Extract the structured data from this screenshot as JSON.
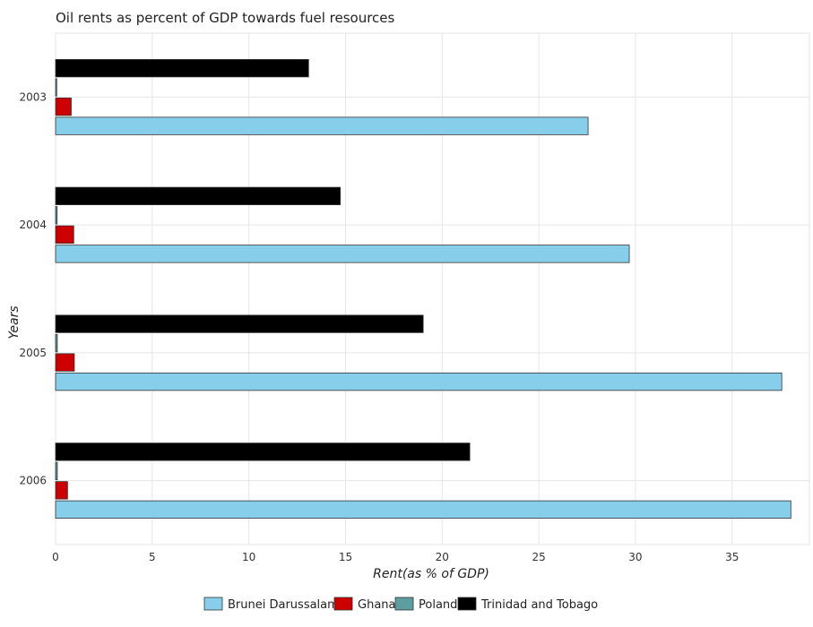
{
  "chart_data": {
    "type": "bar",
    "orientation": "horizontal",
    "title": "Oil rents as percent of GDP towards fuel resources",
    "xlabel": "Rent(as % of GDP)",
    "ylabel": "Years",
    "categories": [
      "2003",
      "2004",
      "2005",
      "2006"
    ],
    "xlim": [
      0,
      39
    ],
    "xticks": [
      "0",
      "5",
      "10",
      "15",
      "20",
      "25",
      "30",
      "35"
    ],
    "grid": true,
    "legend_position": "bottom",
    "series": [
      {
        "name": "Brunei Darussalam",
        "color": "#87CEEB",
        "values": [
          27.55,
          29.68,
          37.57,
          38.04
        ]
      },
      {
        "name": "Ghana",
        "color": "#CC0000",
        "values": [
          0.81,
          0.94,
          0.97,
          0.62
        ]
      },
      {
        "name": "Poland",
        "color": "#5F9EA0",
        "values": [
          0.06,
          0.08,
          0.09,
          0.09
        ]
      },
      {
        "name": "Trinidad and Tobago",
        "color": "#000000",
        "values": [
          13.09,
          14.73,
          19.02,
          21.43
        ]
      }
    ]
  }
}
